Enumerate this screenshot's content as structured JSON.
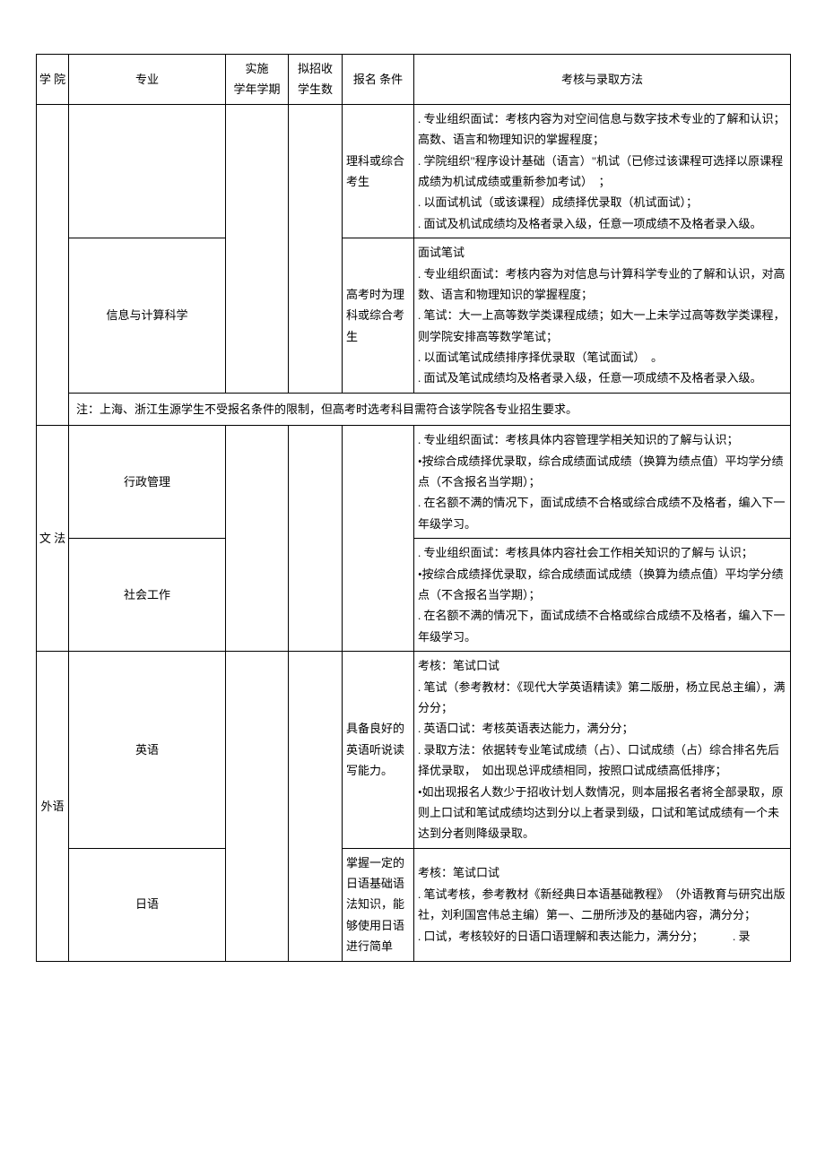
{
  "headers": {
    "college": "学 院",
    "major": "专业",
    "semester": "实施\n学年学期",
    "enroll": "拟招收\n学生数",
    "condition": "报名 条件",
    "method": "考核与录取方法"
  },
  "rows": [
    {
      "condition": "理科或综合考生",
      "method": ". 专业组织面试：考核内容为对空间信息与数字技术专业的了解和认识；高数、语言和物理知识的掌握程度；\n. 学院组织\"程序设计基础（语言）\"机试（已修过该课程可选择以原课程成绩为机试成绩或重新参加考试）　；\n. 以面试机试（或该课程）成绩择优录取（机试面试）；\n. 面试及机试成绩均及格者录入级，任意一项成绩不及格者录入级。"
    },
    {
      "major": "信息与计算科学",
      "condition": "高考时为理科或综合考生",
      "method": "面试笔试\n. 专业组织面试：考核内容为对信息与计算科学专业的了解和认识，对高数、语言和物理知识的掌握程度；\n. 笔试：大一上高等数学类课程成绩；如大一上未学过高等数学类课程，则学院安排高等数学笔试；\n. 以面试笔试成绩排序择优录取（笔试面试）　。\n. 面试及笔试成绩均及格者录入级，任意一项成绩不及格者录入级。"
    }
  ],
  "note": "注：上海、浙江生源学生不受报名条件的限制，但高考时选考科目需符合该学院各专业招生要求。",
  "wenfa": {
    "college": "文 法",
    "rows": [
      {
        "major": "行政管理",
        "method": ". 专业组织面试：考核具体内容管理学相关知识的了解与认识；\n•按综合成绩择优录取，综合成绩面试成绩（换算为绩点值）平均学分绩点（不含报名当学期）；\n. 在名额不满的情况下，面试成绩不合格或综合成绩不及格者，编入下一年级学习。"
      },
      {
        "major": "社会工作",
        "method": ". 专业组织面试：考核具体内容社会工作相关知识的了解与 认识；\n•按综合成绩择优录取，综合成绩面试成绩（换算为绩点值）平均学分绩点（不含报名当学期）；\n. 在名额不满的情况下，面试成绩不合格或综合成绩不及格者，编入下一年级学习。"
      }
    ]
  },
  "waiyu": {
    "college": "外语",
    "rows": [
      {
        "major": "英语",
        "condition": "具备良好的英语听说读写能力。",
        "method": "考核：笔试口试\n. 笔试（参考教材：《现代大学英语精读》第二版册，杨立民总主编），满分分；\n. 英语口试：考核英语表达能力，满分分；\n. 录取方法：依据转专业笔试成绩（占）、口试成绩（占）综合排名先后择优录取，　如出现总评成绩相同，按照口试成绩高低排序；\n•如出现报名人数少于招收计划人数情况，则本届报名者将全部录取，原则上口试和笔试成绩均达到分以上者录到级，口试和笔试成绩有一个未达到分者则降级录取。"
      },
      {
        "major": "日语",
        "condition": "掌握一定的日语基础语法知识，能够使用日语进行简单",
        "method": "考核：笔试口试\n. 笔试考核，参考教材《新经典日本语基础教程》　（外语教育与研究出版社，刘利国宫伟总主编）第一、二册所涉及的基础内容，满分分；\n. 口试，考核较好的日语口语理解和表达能力，满分分；　　　. 录"
      }
    ]
  }
}
